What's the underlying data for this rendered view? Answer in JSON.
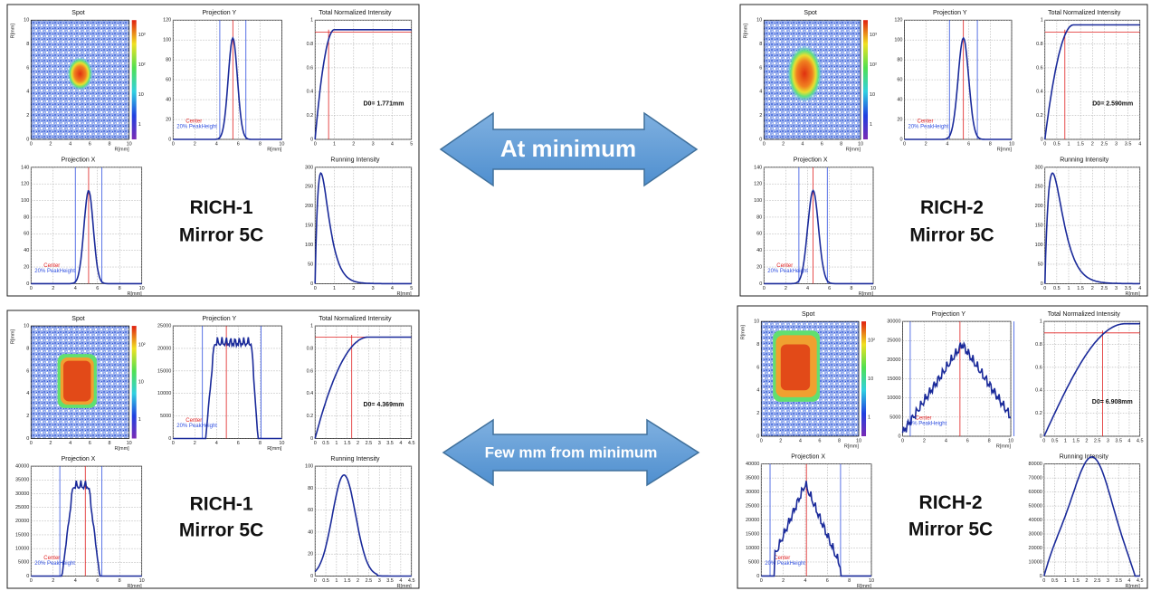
{
  "arrows": [
    "At minimum",
    "Few mm from minimum"
  ],
  "panels": [
    {
      "label": [
        "RICH-1",
        "Mirror 5C"
      ],
      "spot": {
        "title": "Spot",
        "xlabel": "R[mm]",
        "ylabel": "R[mm]",
        "xticks": [
          "0",
          "2",
          "4",
          "6",
          "8",
          "10"
        ],
        "yticks": [
          "0",
          "2",
          "4",
          "6",
          "8",
          "10"
        ],
        "zticks": [
          "1",
          "10",
          "10²",
          "10³"
        ]
      },
      "projY": {
        "title": "Projection Y",
        "xlabel": "R[mm]",
        "xticks": [
          "0",
          "2",
          "4",
          "6",
          "8",
          "10"
        ],
        "yticks": [
          "0",
          "20",
          "40",
          "60",
          "80",
          "100",
          "120"
        ],
        "legend": [
          "Center",
          "20% PeakHeight"
        ]
      },
      "total": {
        "title": "Total Normalized Intensity",
        "xticks": [
          "0",
          "1",
          "2",
          "3",
          "4",
          "5"
        ],
        "yticks": [
          "0",
          "0.2",
          "0.4",
          "0.6",
          "0.8",
          "1"
        ],
        "d0": "D0=  1.771mm"
      },
      "projX": {
        "title": "Projection X",
        "xlabel": "R[mm]",
        "xticks": [
          "0",
          "2",
          "4",
          "6",
          "8",
          "10"
        ],
        "yticks": [
          "0",
          "20",
          "40",
          "60",
          "80",
          "100",
          "120",
          "140"
        ],
        "legend": [
          "Center",
          "20% PeakHeight"
        ]
      },
      "running": {
        "title": "Running Intensity",
        "xlabel": "R[mm]",
        "xticks": [
          "0",
          "1",
          "2",
          "3",
          "4",
          "5"
        ],
        "yticks": [
          "0",
          "50",
          "100",
          "150",
          "200",
          "250",
          "300"
        ]
      }
    },
    {
      "label": [
        "RICH-2",
        "Mirror 5C"
      ],
      "spot": {
        "title": "Spot",
        "xlabel": "R[mm]",
        "ylabel": "R[mm]",
        "xticks": [
          "0",
          "2",
          "4",
          "6",
          "8",
          "10"
        ],
        "yticks": [
          "0",
          "2",
          "4",
          "6",
          "8",
          "10"
        ],
        "zticks": [
          "1",
          "10",
          "10²",
          "10³"
        ]
      },
      "projY": {
        "title": "Projection Y",
        "xlabel": "R[mm]",
        "xticks": [
          "0",
          "2",
          "4",
          "6",
          "8",
          "10"
        ],
        "yticks": [
          "0",
          "20",
          "40",
          "60",
          "80",
          "100",
          "120"
        ],
        "legend": [
          "Center",
          "20% PeakHeight"
        ]
      },
      "total": {
        "title": "Total Normalized Intensity",
        "xticks": [
          "0",
          "0.5",
          "1",
          "1.5",
          "2",
          "2.5",
          "3",
          "3.5",
          "4"
        ],
        "yticks": [
          "0",
          "0.2",
          "0.4",
          "0.6",
          "0.8",
          "1"
        ],
        "d0": "D0=  2.590mm"
      },
      "projX": {
        "title": "Projection X",
        "xlabel": "R[mm]",
        "xticks": [
          "0",
          "2",
          "4",
          "6",
          "8",
          "10"
        ],
        "yticks": [
          "0",
          "20",
          "40",
          "60",
          "80",
          "100",
          "120",
          "140"
        ],
        "legend": [
          "Center",
          "20% PeakHeight"
        ]
      },
      "running": {
        "title": "Running Intensity",
        "xlabel": "R[mm]",
        "xticks": [
          "0",
          "0.5",
          "1",
          "1.5",
          "2",
          "2.5",
          "3",
          "3.5",
          "4"
        ],
        "yticks": [
          "0",
          "50",
          "100",
          "150",
          "200",
          "250",
          "300"
        ]
      }
    },
    {
      "label": [
        "RICH-1",
        "Mirror 5C"
      ],
      "spot": {
        "title": "Spot",
        "xlabel": "R[mm]",
        "ylabel": "R[mm]",
        "xticks": [
          "0",
          "2",
          "4",
          "6",
          "8",
          "10"
        ],
        "yticks": [
          "0",
          "2",
          "4",
          "6",
          "8",
          "10"
        ],
        "zticks": [
          "1",
          "10",
          "10²"
        ]
      },
      "projY": {
        "title": "Projection Y",
        "xlabel": "R[mm]",
        "xticks": [
          "0",
          "2",
          "4",
          "6",
          "8",
          "10"
        ],
        "yticks": [
          "0",
          "5000",
          "10000",
          "15000",
          "20000",
          "25000"
        ],
        "legend": [
          "Center",
          "20% PeakHeight"
        ]
      },
      "total": {
        "title": "Total Normalized Intensity",
        "xticks": [
          "0",
          "0.5",
          "1",
          "1.5",
          "2",
          "2.5",
          "3",
          "3.5",
          "4",
          "4.5"
        ],
        "yticks": [
          "0",
          "0.2",
          "0.4",
          "0.6",
          "0.8",
          "1"
        ],
        "d0": "D0=  4.369mm"
      },
      "projX": {
        "title": "Projection X",
        "xlabel": "R[mm]",
        "xticks": [
          "0",
          "2",
          "4",
          "6",
          "8",
          "10"
        ],
        "yticks": [
          "0",
          "5000",
          "10000",
          "15000",
          "20000",
          "25000",
          "30000",
          "35000",
          "40000"
        ],
        "legend": [
          "Center",
          "20% PeakHeight"
        ]
      },
      "running": {
        "title": "Running Intensity",
        "xlabel": "R[mm]",
        "xticks": [
          "0",
          "0.5",
          "1",
          "1.5",
          "2",
          "2.5",
          "3",
          "3.5",
          "4",
          "4.5"
        ],
        "yticks": [
          "0",
          "20",
          "40",
          "60",
          "80",
          "100"
        ]
      }
    },
    {
      "label": [
        "RICH-2",
        "Mirror 5C"
      ],
      "spot": {
        "title": "Spot",
        "xlabel": "R[mm]",
        "ylabel": "R[mm]",
        "xticks": [
          "0",
          "2",
          "4",
          "6",
          "8",
          "10"
        ],
        "yticks": [
          "0",
          "2",
          "4",
          "6",
          "8",
          "10"
        ],
        "zticks": [
          "1",
          "10",
          "10²"
        ]
      },
      "projY": {
        "title": "Projection Y",
        "xlabel": "R[mm]",
        "xticks": [
          "0",
          "2",
          "4",
          "6",
          "8",
          "10"
        ],
        "yticks": [
          "0",
          "5000",
          "10000",
          "15000",
          "20000",
          "25000",
          "30000"
        ],
        "legend": [
          "Center",
          "20% PeakHeight"
        ]
      },
      "total": {
        "title": "Total Normalized Intensity",
        "xticks": [
          "0",
          "0.5",
          "1",
          "1.5",
          "2",
          "2.5",
          "3",
          "3.5",
          "4",
          "4.5"
        ],
        "yticks": [
          "0",
          "0.2",
          "0.4",
          "0.6",
          "0.8",
          "1"
        ],
        "d0": "D0=  6.908mm"
      },
      "projX": {
        "title": "Projection X",
        "xlabel": "R[mm]",
        "xticks": [
          "0",
          "2",
          "4",
          "6",
          "8",
          "10"
        ],
        "yticks": [
          "0",
          "5000",
          "10000",
          "15000",
          "20000",
          "25000",
          "30000",
          "35000",
          "40000"
        ],
        "legend": [
          "Center",
          "20% PeakHeight"
        ]
      },
      "running": {
        "title": "Running Intensity",
        "xlabel": "R[mm]",
        "xticks": [
          "0",
          "0.5",
          "1",
          "1.5",
          "2",
          "2.5",
          "3",
          "3.5",
          "4",
          "4.5"
        ],
        "yticks": [
          "0",
          "10000",
          "20000",
          "30000",
          "40000",
          "50000",
          "60000",
          "70000",
          "80000"
        ]
      }
    }
  ]
}
